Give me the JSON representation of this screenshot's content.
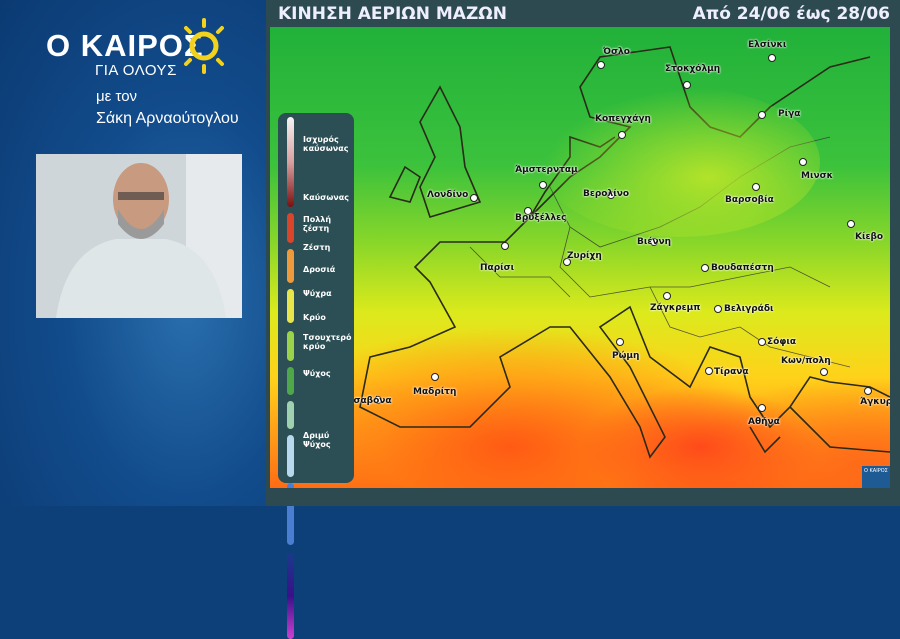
{
  "brand": {
    "logo": "Ο ΚΑΙΡΟΣ",
    "logo_sub": "ΓΙΑ ΟΛΟΥΣ",
    "host_prefix": "με τον",
    "host_name": "Σάκη Αρναούτογλου",
    "sun_color": "#f2d21c"
  },
  "header": {
    "title": "ΚΙΝΗΣΗ ΑΕΡΙΩΝ ΜΑΖΩΝ",
    "date_range": "Από 24/06 έως 28/06"
  },
  "legend": [
    {
      "label": "Ισχυρός καύσωνας",
      "color": "#8a1a1a"
    },
    {
      "label": "Καύσωνας",
      "color": "#d8452a"
    },
    {
      "label": "Πολλή ζέστη",
      "color": "#ee9a3a"
    },
    {
      "label": "Ζέστη",
      "color": "#e8e54a"
    },
    {
      "label": "Δροσιά",
      "color": "#9ad24a"
    },
    {
      "label": "Ψύχρα",
      "color": "#4ea84a"
    },
    {
      "label": "Κρύο",
      "color": "#9fd0b0"
    },
    {
      "label": "Τσουχτερό κρύο",
      "color": "#b8d8ee"
    },
    {
      "label": "Ψύχος",
      "color": "#4a7ed0"
    },
    {
      "label": "Δριμύ Ψύχος",
      "color": "#5a1a9a"
    }
  ],
  "cities": [
    "Όσλο",
    "Στοκχόλμη",
    "Ελσίνκι",
    "Ρίγα",
    "Κοπεγχάγη",
    "Μινσκ",
    "Άμστερνταμ",
    "Λονδίνο",
    "Βερολίνο",
    "Βαρσοβία",
    "Βρυξέλλες",
    "Κίεβο",
    "Παρίσι",
    "Βιέννη",
    "Ζυρίχη",
    "Βουδαπέστη",
    "Ζάγκρεμπ",
    "Βελιγράδι",
    "Σόφια",
    "Κων/πολη",
    "Ρώμη",
    "Τίρανα",
    "Μαδρίτη",
    "Λισαβόνα",
    "Αθήνα",
    "Άγκυρα"
  ],
  "mini_logo": "Ο ΚΑΙΡΟΣ"
}
